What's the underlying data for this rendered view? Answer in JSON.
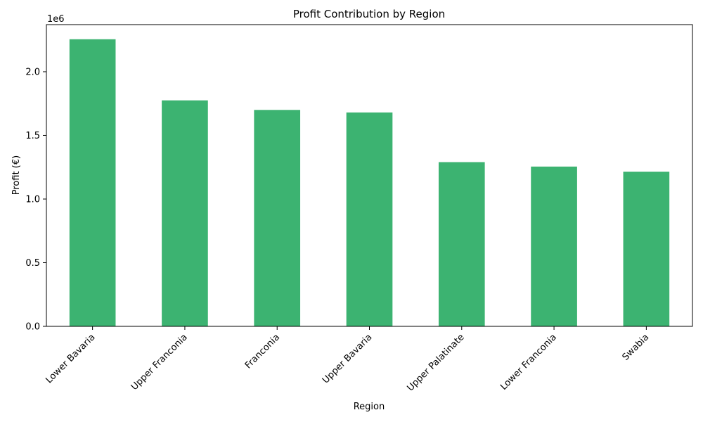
{
  "chart_data": {
    "type": "bar",
    "title": "Profit Contribution by Region",
    "xlabel": "Region",
    "ylabel": "Profit (€)",
    "offset_label": "1e6",
    "categories": [
      "Lower Bavaria",
      "Upper Franconia",
      "Franconia",
      "Upper Bavaria",
      "Upper Palatinate",
      "Lower Franconia",
      "Swabia"
    ],
    "values": [
      2255000,
      1775000,
      1700000,
      1680000,
      1290000,
      1255000,
      1215000
    ],
    "ylim": [
      0,
      2370000
    ],
    "yticks": [
      0,
      500000,
      1000000,
      1500000,
      2000000
    ],
    "ytick_labels": [
      "0.0",
      "0.5",
      "1.0",
      "1.5",
      "2.0"
    ],
    "bar_color": "#3cb371",
    "grid": false,
    "legend": "none"
  }
}
